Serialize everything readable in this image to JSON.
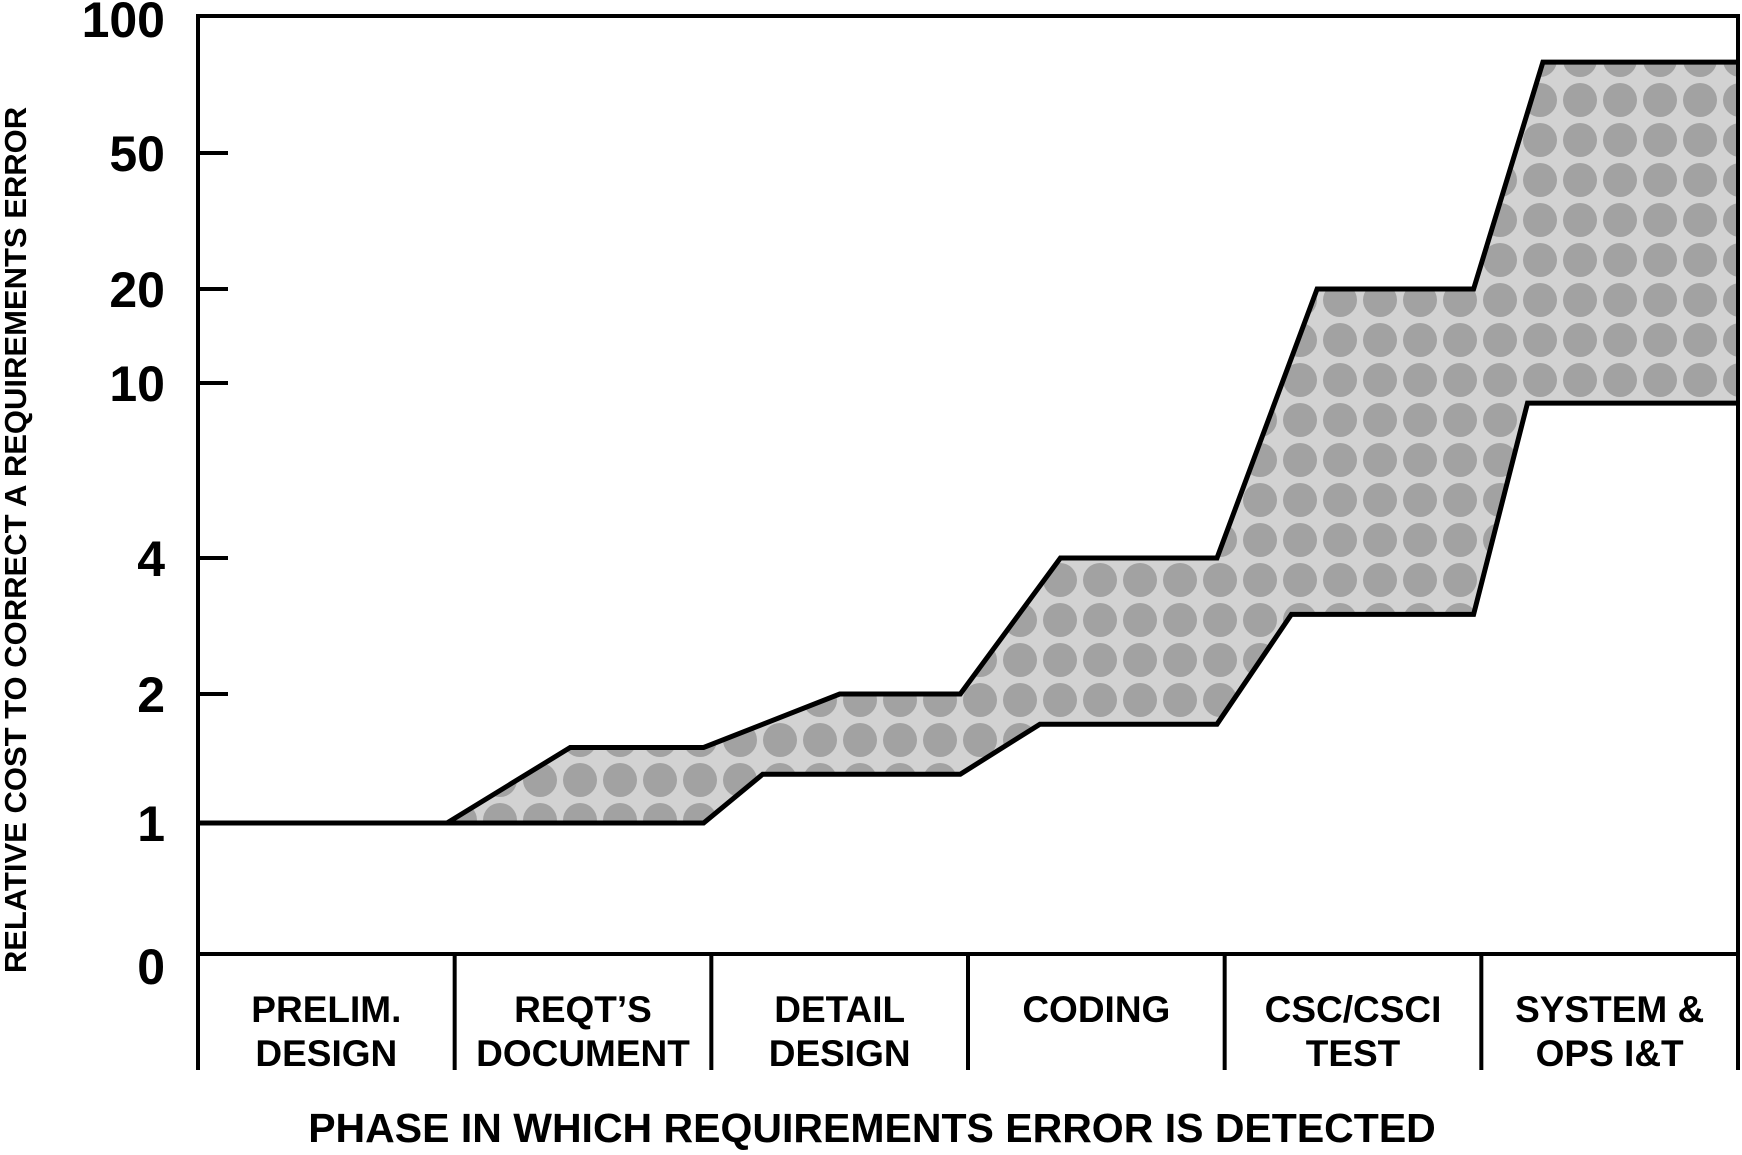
{
  "chart_data": {
    "type": "area",
    "title": "",
    "xlabel": "PHASE IN WHICH REQUIREMENTS ERROR IS DETECTED",
    "ylabel": "RELATIVE COST TO CORRECT A REQUIREMENTS ERROR",
    "y_ticks": [
      "0",
      "1",
      "2",
      "4",
      "10",
      "20",
      "50",
      "100"
    ],
    "categories": [
      {
        "lines": [
          "PRELIM.",
          "DESIGN"
        ]
      },
      {
        "lines": [
          "REQT’S",
          "DOCUMENT"
        ]
      },
      {
        "lines": [
          "DETAIL",
          "DESIGN"
        ]
      },
      {
        "lines": [
          "CODING"
        ]
      },
      {
        "lines": [
          "CSC/CSCI",
          "TEST"
        ]
      },
      {
        "lines": [
          "SYSTEM &",
          "OPS I&T"
        ]
      }
    ],
    "series": [
      {
        "band": "upper",
        "values": [
          1,
          1.5,
          2,
          4,
          20,
          80
        ]
      },
      {
        "band": "lower",
        "values": [
          1,
          1,
          1.3,
          1.7,
          3,
          9
        ]
      }
    ],
    "grid": false,
    "legend": "none",
    "colors": {
      "band_fill": "#d2d2d2",
      "dot_fill": "#a2a2a2",
      "line": "#000000"
    }
  }
}
